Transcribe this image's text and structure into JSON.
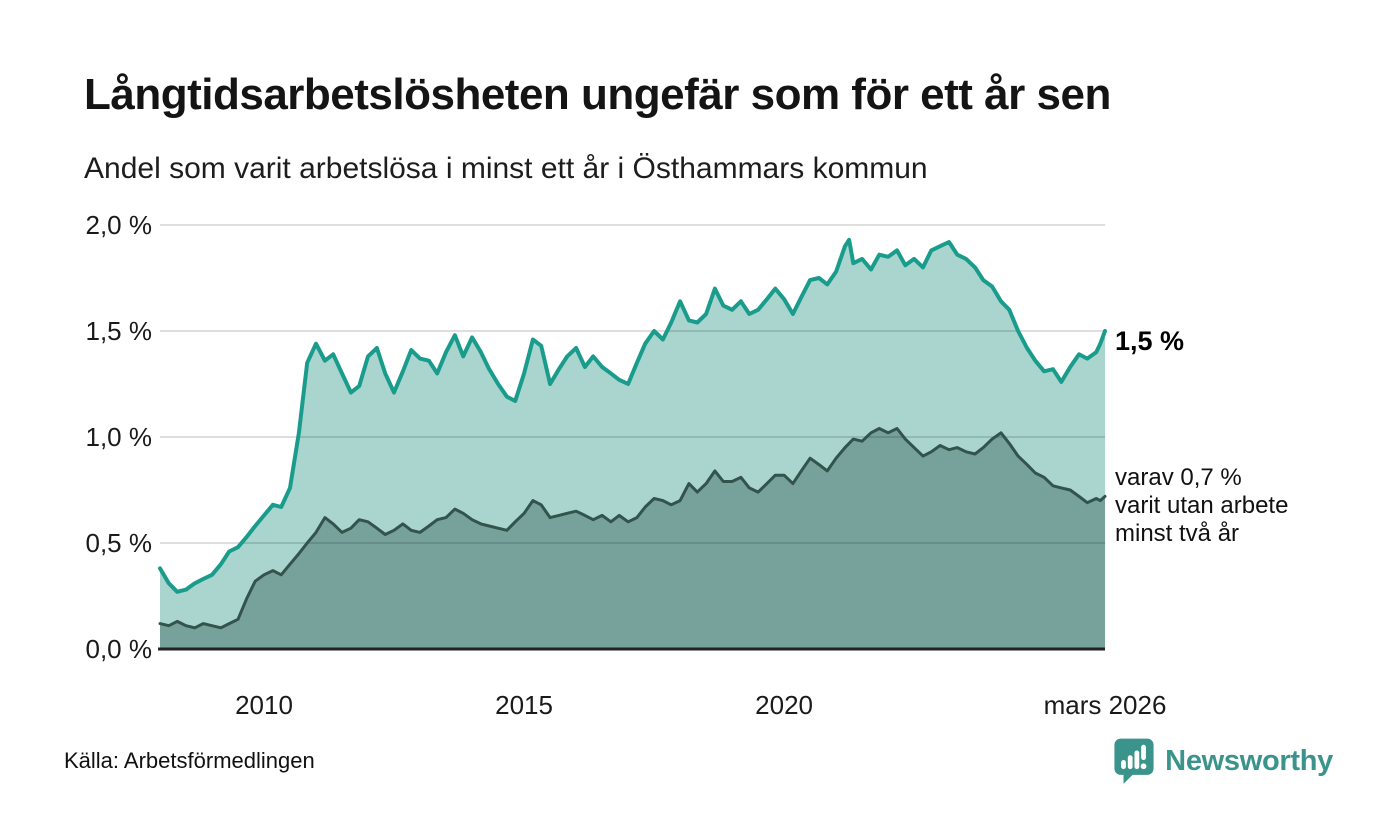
{
  "header": {
    "title": "Långtidsarbetslösheten ungefär som för ett år sen",
    "subtitle": "Andel som varit arbetslösa i minst ett år i Östhammars kommun"
  },
  "annotations": {
    "primary": "1,5 %",
    "secondary_line1": "varav 0,7 %",
    "secondary_line2": "varit utan arbete",
    "secondary_line3": "minst två år"
  },
  "footer": {
    "source": "Källa: Arbetsförmedlingen",
    "brand": "Newsworthy",
    "brand_color": "#3b948b"
  },
  "chart_data": {
    "type": "area",
    "title": "Långtidsarbetslösheten ungefär som för ett år sen",
    "subtitle": "Andel som varit arbetslösa i minst ett år i Östhammars kommun",
    "x_domain": [
      2008,
      2026.17
    ],
    "ylim": [
      0,
      2.0
    ],
    "grid": true,
    "legend": "none",
    "axis_color": "#222222",
    "grid_color": "rgba(0,0,0,0.13)",
    "y_ticks": [
      {
        "label": "2,0 %",
        "value": 2.0
      },
      {
        "label": "1,5 %",
        "value": 1.5
      },
      {
        "label": "1,0 %",
        "value": 1.0
      },
      {
        "label": "0,5 %",
        "value": 0.5
      },
      {
        "label": "0,0 %",
        "value": 0.0
      }
    ],
    "x_ticks": [
      {
        "label": "2010",
        "value": 2010
      },
      {
        "label": "2015",
        "value": 2015
      },
      {
        "label": "2020",
        "value": 2020
      },
      {
        "label": "mars 2026",
        "value": 2026.17
      }
    ],
    "series": [
      {
        "name": "Arbetslösa minst ett år",
        "color": "#1a9c8c",
        "fill": "#a9d5ce",
        "stroke_width": 4,
        "latest_label": "1,5 %",
        "latest_value": 1.5,
        "points": [
          [
            2008.0,
            0.38
          ],
          [
            2008.17,
            0.31
          ],
          [
            2008.33,
            0.27
          ],
          [
            2008.5,
            0.28
          ],
          [
            2008.67,
            0.31
          ],
          [
            2008.83,
            0.33
          ],
          [
            2009.0,
            0.35
          ],
          [
            2009.17,
            0.4
          ],
          [
            2009.33,
            0.46
          ],
          [
            2009.5,
            0.48
          ],
          [
            2009.67,
            0.53
          ],
          [
            2009.83,
            0.58
          ],
          [
            2010.0,
            0.63
          ],
          [
            2010.17,
            0.68
          ],
          [
            2010.33,
            0.67
          ],
          [
            2010.5,
            0.76
          ],
          [
            2010.67,
            1.02
          ],
          [
            2010.83,
            1.35
          ],
          [
            2011.0,
            1.44
          ],
          [
            2011.17,
            1.36
          ],
          [
            2011.33,
            1.39
          ],
          [
            2011.5,
            1.3
          ],
          [
            2011.67,
            1.21
          ],
          [
            2011.83,
            1.24
          ],
          [
            2012.0,
            1.38
          ],
          [
            2012.17,
            1.42
          ],
          [
            2012.33,
            1.3
          ],
          [
            2012.5,
            1.21
          ],
          [
            2012.67,
            1.31
          ],
          [
            2012.83,
            1.41
          ],
          [
            2013.0,
            1.37
          ],
          [
            2013.17,
            1.36
          ],
          [
            2013.33,
            1.3
          ],
          [
            2013.5,
            1.4
          ],
          [
            2013.67,
            1.48
          ],
          [
            2013.83,
            1.38
          ],
          [
            2014.0,
            1.47
          ],
          [
            2014.17,
            1.4
          ],
          [
            2014.33,
            1.32
          ],
          [
            2014.5,
            1.25
          ],
          [
            2014.67,
            1.19
          ],
          [
            2014.83,
            1.17
          ],
          [
            2015.0,
            1.3
          ],
          [
            2015.17,
            1.46
          ],
          [
            2015.33,
            1.43
          ],
          [
            2015.5,
            1.25
          ],
          [
            2015.67,
            1.32
          ],
          [
            2015.83,
            1.38
          ],
          [
            2016.0,
            1.42
          ],
          [
            2016.17,
            1.33
          ],
          [
            2016.33,
            1.38
          ],
          [
            2016.5,
            1.33
          ],
          [
            2016.67,
            1.3
          ],
          [
            2016.83,
            1.27
          ],
          [
            2017.0,
            1.25
          ],
          [
            2017.17,
            1.35
          ],
          [
            2017.33,
            1.44
          ],
          [
            2017.5,
            1.5
          ],
          [
            2017.67,
            1.46
          ],
          [
            2017.83,
            1.54
          ],
          [
            2018.0,
            1.64
          ],
          [
            2018.17,
            1.55
          ],
          [
            2018.33,
            1.54
          ],
          [
            2018.5,
            1.58
          ],
          [
            2018.67,
            1.7
          ],
          [
            2018.83,
            1.62
          ],
          [
            2019.0,
            1.6
          ],
          [
            2019.17,
            1.64
          ],
          [
            2019.33,
            1.58
          ],
          [
            2019.5,
            1.6
          ],
          [
            2019.67,
            1.65
          ],
          [
            2019.83,
            1.7
          ],
          [
            2020.0,
            1.65
          ],
          [
            2020.17,
            1.58
          ],
          [
            2020.33,
            1.66
          ],
          [
            2020.5,
            1.74
          ],
          [
            2020.67,
            1.75
          ],
          [
            2020.83,
            1.72
          ],
          [
            2021.0,
            1.78
          ],
          [
            2021.17,
            1.9
          ],
          [
            2021.25,
            1.93
          ],
          [
            2021.33,
            1.82
          ],
          [
            2021.5,
            1.84
          ],
          [
            2021.67,
            1.79
          ],
          [
            2021.83,
            1.86
          ],
          [
            2022.0,
            1.85
          ],
          [
            2022.17,
            1.88
          ],
          [
            2022.33,
            1.81
          ],
          [
            2022.5,
            1.84
          ],
          [
            2022.67,
            1.8
          ],
          [
            2022.83,
            1.88
          ],
          [
            2023.0,
            1.9
          ],
          [
            2023.17,
            1.92
          ],
          [
            2023.33,
            1.86
          ],
          [
            2023.5,
            1.84
          ],
          [
            2023.67,
            1.8
          ],
          [
            2023.83,
            1.74
          ],
          [
            2024.0,
            1.71
          ],
          [
            2024.17,
            1.64
          ],
          [
            2024.33,
            1.6
          ],
          [
            2024.5,
            1.5
          ],
          [
            2024.67,
            1.42
          ],
          [
            2024.83,
            1.36
          ],
          [
            2025.0,
            1.31
          ],
          [
            2025.17,
            1.32
          ],
          [
            2025.33,
            1.26
          ],
          [
            2025.5,
            1.33
          ],
          [
            2025.67,
            1.39
          ],
          [
            2025.83,
            1.37
          ],
          [
            2026.0,
            1.4
          ],
          [
            2026.08,
            1.44
          ],
          [
            2026.17,
            1.5
          ]
        ]
      },
      {
        "name": "Arbetslösa minst två år",
        "color": "#33534d",
        "fill": "#76a29b",
        "stroke_width": 3,
        "latest_label": "0,7 %",
        "latest_value": 0.72,
        "points": [
          [
            2008.0,
            0.12
          ],
          [
            2008.17,
            0.11
          ],
          [
            2008.33,
            0.13
          ],
          [
            2008.5,
            0.11
          ],
          [
            2008.67,
            0.1
          ],
          [
            2008.83,
            0.12
          ],
          [
            2009.0,
            0.11
          ],
          [
            2009.17,
            0.1
          ],
          [
            2009.33,
            0.12
          ],
          [
            2009.5,
            0.14
          ],
          [
            2009.67,
            0.24
          ],
          [
            2009.83,
            0.32
          ],
          [
            2010.0,
            0.35
          ],
          [
            2010.17,
            0.37
          ],
          [
            2010.33,
            0.35
          ],
          [
            2010.5,
            0.4
          ],
          [
            2010.67,
            0.45
          ],
          [
            2010.83,
            0.5
          ],
          [
            2011.0,
            0.55
          ],
          [
            2011.17,
            0.62
          ],
          [
            2011.33,
            0.59
          ],
          [
            2011.5,
            0.55
          ],
          [
            2011.67,
            0.57
          ],
          [
            2011.83,
            0.61
          ],
          [
            2012.0,
            0.6
          ],
          [
            2012.17,
            0.57
          ],
          [
            2012.33,
            0.54
          ],
          [
            2012.5,
            0.56
          ],
          [
            2012.67,
            0.59
          ],
          [
            2012.83,
            0.56
          ],
          [
            2013.0,
            0.55
          ],
          [
            2013.17,
            0.58
          ],
          [
            2013.33,
            0.61
          ],
          [
            2013.5,
            0.62
          ],
          [
            2013.67,
            0.66
          ],
          [
            2013.83,
            0.64
          ],
          [
            2014.0,
            0.61
          ],
          [
            2014.17,
            0.59
          ],
          [
            2014.33,
            0.58
          ],
          [
            2014.5,
            0.57
          ],
          [
            2014.67,
            0.56
          ],
          [
            2014.83,
            0.6
          ],
          [
            2015.0,
            0.64
          ],
          [
            2015.17,
            0.7
          ],
          [
            2015.33,
            0.68
          ],
          [
            2015.5,
            0.62
          ],
          [
            2015.67,
            0.63
          ],
          [
            2015.83,
            0.64
          ],
          [
            2016.0,
            0.65
          ],
          [
            2016.17,
            0.63
          ],
          [
            2016.33,
            0.61
          ],
          [
            2016.5,
            0.63
          ],
          [
            2016.67,
            0.6
          ],
          [
            2016.83,
            0.63
          ],
          [
            2017.0,
            0.6
          ],
          [
            2017.17,
            0.62
          ],
          [
            2017.33,
            0.67
          ],
          [
            2017.5,
            0.71
          ],
          [
            2017.67,
            0.7
          ],
          [
            2017.83,
            0.68
          ],
          [
            2018.0,
            0.7
          ],
          [
            2018.17,
            0.78
          ],
          [
            2018.33,
            0.74
          ],
          [
            2018.5,
            0.78
          ],
          [
            2018.67,
            0.84
          ],
          [
            2018.83,
            0.79
          ],
          [
            2019.0,
            0.79
          ],
          [
            2019.17,
            0.81
          ],
          [
            2019.33,
            0.76
          ],
          [
            2019.5,
            0.74
          ],
          [
            2019.67,
            0.78
          ],
          [
            2019.83,
            0.82
          ],
          [
            2020.0,
            0.82
          ],
          [
            2020.17,
            0.78
          ],
          [
            2020.33,
            0.84
          ],
          [
            2020.5,
            0.9
          ],
          [
            2020.67,
            0.87
          ],
          [
            2020.83,
            0.84
          ],
          [
            2021.0,
            0.9
          ],
          [
            2021.17,
            0.95
          ],
          [
            2021.33,
            0.99
          ],
          [
            2021.5,
            0.98
          ],
          [
            2021.67,
            1.02
          ],
          [
            2021.83,
            1.04
          ],
          [
            2022.0,
            1.02
          ],
          [
            2022.17,
            1.04
          ],
          [
            2022.33,
            0.99
          ],
          [
            2022.5,
            0.95
          ],
          [
            2022.67,
            0.91
          ],
          [
            2022.83,
            0.93
          ],
          [
            2023.0,
            0.96
          ],
          [
            2023.17,
            0.94
          ],
          [
            2023.33,
            0.95
          ],
          [
            2023.5,
            0.93
          ],
          [
            2023.67,
            0.92
          ],
          [
            2023.83,
            0.95
          ],
          [
            2024.0,
            0.99
          ],
          [
            2024.17,
            1.02
          ],
          [
            2024.33,
            0.97
          ],
          [
            2024.5,
            0.91
          ],
          [
            2024.67,
            0.87
          ],
          [
            2024.83,
            0.83
          ],
          [
            2025.0,
            0.81
          ],
          [
            2025.17,
            0.77
          ],
          [
            2025.33,
            0.76
          ],
          [
            2025.5,
            0.75
          ],
          [
            2025.67,
            0.72
          ],
          [
            2025.83,
            0.69
          ],
          [
            2026.0,
            0.71
          ],
          [
            2026.08,
            0.7
          ],
          [
            2026.17,
            0.72
          ]
        ]
      }
    ]
  }
}
